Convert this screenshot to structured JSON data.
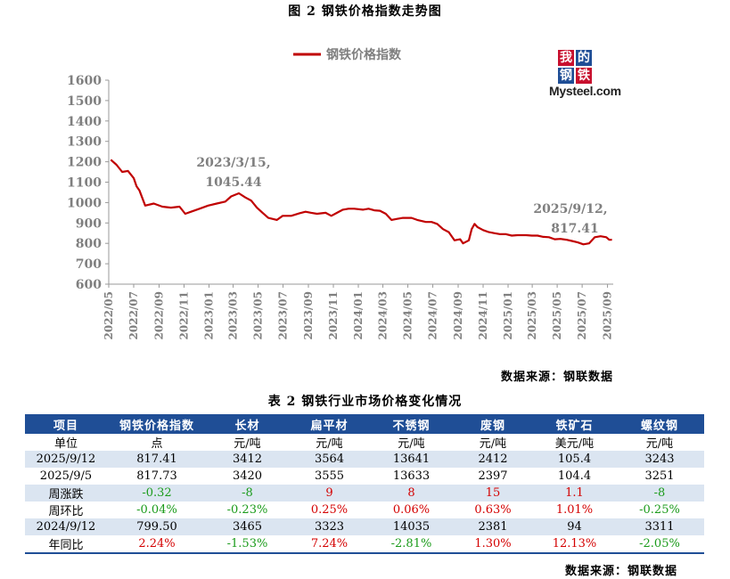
{
  "figure_title": "图 2 钢铁价格指数走势图",
  "chart_source": "数据来源：钢联数据",
  "logo": {
    "chars": [
      "我",
      "的",
      "钢",
      "铁"
    ],
    "word": "Mysteel.com"
  },
  "colors": {
    "line": "#c00000",
    "header": "#1f4e96",
    "alt_row": "#dbe5f1",
    "up": "#d40000",
    "down": "#1a9b1a"
  },
  "chart_data": {
    "type": "line",
    "title": "",
    "xlabel": "",
    "ylabel": "",
    "ylim": [
      600,
      1600
    ],
    "yticks": [
      600,
      700,
      800,
      900,
      1000,
      1100,
      1200,
      1300,
      1400,
      1500,
      1600
    ],
    "xticks": [
      "2022/05",
      "2022/07",
      "2022/09",
      "2022/11",
      "2023/01",
      "2023/03",
      "2023/05",
      "2023/07",
      "2023/09",
      "2023/11",
      "2024/01",
      "2024/03",
      "2024/05",
      "2024/07",
      "2024/09",
      "2024/11",
      "2025/01",
      "2025/03",
      "2025/05",
      "2025/07",
      "2025/09"
    ],
    "legend": "top-center",
    "grid": false,
    "series": [
      {
        "name": "钢铁价格指数",
        "x": [
          "2022-05-06",
          "2022-05-20",
          "2022-06-03",
          "2022-06-17",
          "2022-07-01",
          "2022-07-08",
          "2022-07-15",
          "2022-07-29",
          "2022-08-19",
          "2022-09-09",
          "2022-09-30",
          "2022-10-21",
          "2022-11-04",
          "2022-11-18",
          "2022-12-09",
          "2022-12-30",
          "2023-01-20",
          "2023-02-10",
          "2023-02-24",
          "2023-03-15",
          "2023-03-31",
          "2023-04-14",
          "2023-04-28",
          "2023-05-12",
          "2023-05-26",
          "2023-06-16",
          "2023-06-30",
          "2023-07-21",
          "2023-08-11",
          "2023-08-25",
          "2023-09-08",
          "2023-09-22",
          "2023-10-13",
          "2023-10-27",
          "2023-11-10",
          "2023-11-24",
          "2023-12-08",
          "2023-12-22",
          "2024-01-12",
          "2024-01-26",
          "2024-02-09",
          "2024-02-23",
          "2024-03-08",
          "2024-03-22",
          "2024-04-05",
          "2024-04-19",
          "2024-05-10",
          "2024-05-24",
          "2024-06-14",
          "2024-06-28",
          "2024-07-12",
          "2024-07-26",
          "2024-08-09",
          "2024-08-23",
          "2024-09-06",
          "2024-09-13",
          "2024-09-27",
          "2024-10-04",
          "2024-10-11",
          "2024-10-18",
          "2024-11-01",
          "2024-11-15",
          "2024-11-29",
          "2024-12-13",
          "2024-12-27",
          "2025-01-10",
          "2025-01-24",
          "2025-02-14",
          "2025-02-28",
          "2025-03-14",
          "2025-03-28",
          "2025-04-11",
          "2025-04-25",
          "2025-05-09",
          "2025-05-23",
          "2025-06-06",
          "2025-06-20",
          "2025-07-04",
          "2025-07-18",
          "2025-08-01",
          "2025-08-15",
          "2025-08-29",
          "2025-09-05",
          "2025-09-12"
        ],
        "y": [
          1210,
          1185,
          1150,
          1155,
          1120,
          1080,
          1060,
          985,
          995,
          980,
          975,
          980,
          945,
          955,
          970,
          985,
          995,
          1005,
          1030,
          1045.44,
          1025,
          1010,
          975,
          950,
          925,
          915,
          935,
          935,
          948,
          955,
          950,
          945,
          950,
          935,
          950,
          965,
          970,
          970,
          965,
          970,
          962,
          960,
          945,
          915,
          920,
          925,
          925,
          915,
          905,
          905,
          895,
          870,
          855,
          815,
          820,
          800,
          815,
          870,
          895,
          880,
          865,
          855,
          850,
          845,
          845,
          838,
          840,
          840,
          838,
          838,
          832,
          830,
          820,
          822,
          818,
          812,
          805,
          795,
          800,
          830,
          835,
          830,
          817.73,
          817.41
        ]
      }
    ],
    "annotations": [
      {
        "text": "2023/3/15,",
        "value": "1045.44"
      },
      {
        "text": "2025/9/12,",
        "value": "817.41"
      }
    ]
  },
  "table_title": "表 2 钢铁行业市场价格变化情况",
  "table": {
    "headers": [
      "项目",
      "钢铁价格指数",
      "长材",
      "扁平材",
      "不锈钢",
      "废钢",
      "铁矿石",
      "螺纹钢"
    ],
    "rows": [
      {
        "label": "单位",
        "cells": [
          "点",
          "元/吨",
          "元/吨",
          "元/吨",
          "元/吨",
          "美元/吨",
          "元/吨"
        ],
        "trend": [
          "",
          "",
          "",
          "",
          "",
          "",
          ""
        ]
      },
      {
        "label": "2025/9/12",
        "cells": [
          "817.41",
          "3412",
          "3564",
          "13641",
          "2412",
          "105.4",
          "3243"
        ],
        "trend": [
          "",
          "",
          "",
          "",
          "",
          "",
          ""
        ]
      },
      {
        "label": "2025/9/5",
        "cells": [
          "817.73",
          "3420",
          "3555",
          "13633",
          "2397",
          "104.4",
          "3251"
        ],
        "trend": [
          "",
          "",
          "",
          "",
          "",
          "",
          ""
        ]
      },
      {
        "label": "周涨跌",
        "cells": [
          "-0.32",
          "-8",
          "9",
          "8",
          "15",
          "1.1",
          "-8"
        ],
        "trend": [
          "down",
          "down",
          "up",
          "up",
          "up",
          "up",
          "down"
        ]
      },
      {
        "label": "周环比",
        "cells": [
          "-0.04%",
          "-0.23%",
          "0.25%",
          "0.06%",
          "0.63%",
          "1.01%",
          "-0.25%"
        ],
        "trend": [
          "down",
          "down",
          "up",
          "up",
          "up",
          "up",
          "down"
        ]
      },
      {
        "label": "2024/9/12",
        "cells": [
          "799.50",
          "3465",
          "3323",
          "14035",
          "2381",
          "94",
          "3311"
        ],
        "trend": [
          "",
          "",
          "",
          "",
          "",
          "",
          ""
        ]
      },
      {
        "label": "年同比",
        "cells": [
          "2.24%",
          "-1.53%",
          "7.24%",
          "-2.81%",
          "1.30%",
          "12.13%",
          "-2.05%"
        ],
        "trend": [
          "up",
          "down",
          "up",
          "down",
          "up",
          "up",
          "down"
        ]
      }
    ]
  },
  "table_source": "数据来源：钢联数据"
}
